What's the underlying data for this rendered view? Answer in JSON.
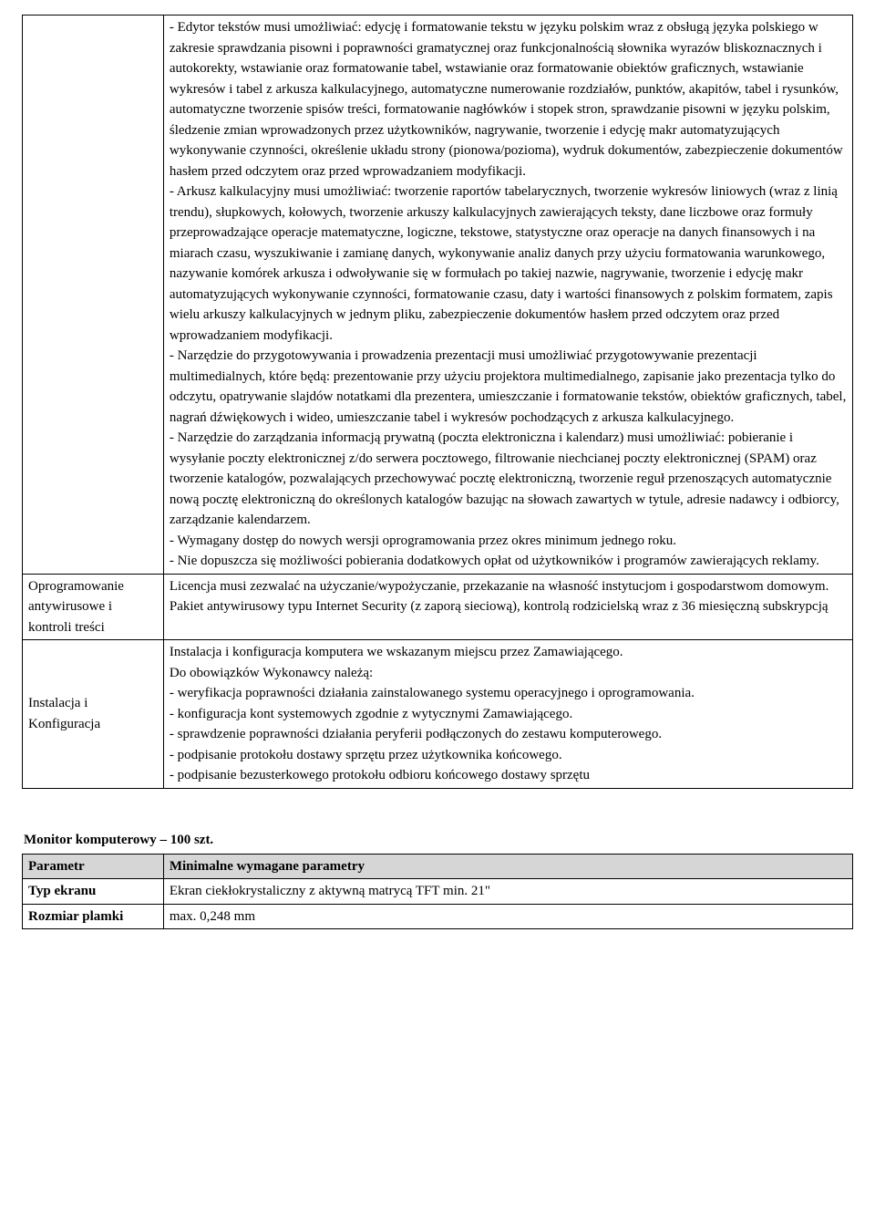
{
  "table1": {
    "rows": [
      {
        "label": "",
        "content": "- Edytor tekstów musi umożliwiać: edycję i formatowanie tekstu w języku polskim wraz z obsługą języka polskiego w zakresie sprawdzania pisowni i poprawności gramatycznej oraz funkcjonalnością słownika wyrazów  bliskoznacznych i autokorekty, wstawianie oraz formatowanie tabel, wstawianie oraz formatowanie obiektów graficznych, wstawianie wykresów i tabel z arkusza kalkulacyjnego,  automatyczne numerowanie rozdziałów, punktów, akapitów, tabel i rysunków, automatyczne tworzenie spisów treści, formatowanie nagłówków i stopek stron, sprawdzanie pisowni w języku polskim, śledzenie zmian wprowadzonych przez użytkowników, nagrywanie, tworzenie i edycję makr automatyzujących wykonywanie czynności, określenie układu strony (pionowa/pozioma), wydruk dokumentów, zabezpieczenie dokumentów hasłem przed odczytem oraz przed wprowadzaniem modyfikacji.\n- Arkusz kalkulacyjny musi umożliwiać: tworzenie raportów tabelarycznych, tworzenie wykresów liniowych (wraz z linią trendu), słupkowych, kołowych, tworzenie arkuszy kalkulacyjnych zawierających teksty, dane liczbowe oraz formuły przeprowadzające operacje matematyczne, logiczne, tekstowe, statystyczne oraz operacje na danych finansowych i na miarach czasu, wyszukiwanie i zamianę danych, wykonywanie analiz danych przy użyciu formatowania warunkowego, nazywanie komórek arkusza i odwoływanie się w formułach po takiej nazwie, nagrywanie, tworzenie i edycję makr automatyzujących wykonywanie czynności, formatowanie czasu, daty i wartości finansowych z polskim formatem, zapis wielu arkuszy kalkulacyjnych w jednym pliku, zabezpieczenie dokumentów hasłem przed odczytem oraz przed wprowadzaniem modyfikacji.\n- Narzędzie do przygotowywania i prowadzenia prezentacji musi umożliwiać przygotowywanie prezentacji multimedialnych, które będą: prezentowanie przy użyciu projektora multimedialnego, zapisanie jako prezentacja tylko do odczytu, opatrywanie slajdów notatkami dla prezentera, umieszczanie i formatowanie tekstów, obiektów graficznych, tabel, nagrań dźwiękowych i wideo, umieszczanie tabel i wykresów pochodzących z arkusza kalkulacyjnego.\n- Narzędzie do zarządzania informacją prywatną (poczta elektroniczna i kalendarz) musi umożliwiać: pobieranie i wysyłanie poczty elektronicznej z/do serwera pocztowego, filtrowanie niechcianej poczty elektronicznej (SPAM) oraz  tworzenie katalogów, pozwalających przechowywać pocztę elektroniczną, tworzenie reguł przenoszących automatycznie nową pocztę elektroniczną do określonych katalogów bazując na słowach zawartych w tytule, adresie nadawcy i odbiorcy, zarządzanie kalendarzem.\n- Wymagany dostęp do nowych wersji  oprogramowania przez okres minimum jednego roku.\n- Nie dopuszcza się możliwości pobierania dodatkowych opłat od użytkowników i programów zawierających reklamy."
      },
      {
        "label": "Oprogramowanie antywirusowe i kontroli treści",
        "content": "Licencja musi zezwalać na użyczanie/wypożyczanie, przekazanie na własność instytucjom i gospodarstwom domowym.\nPakiet antywirusowy typu Internet Security (z zaporą sieciową), kontrolą rodzicielską wraz z 36 miesięczną subskrypcją"
      },
      {
        "label": "Instalacja i Konfiguracja",
        "content": "Instalacja i konfiguracja  komputera we wskazanym miejscu przez Zamawiającego.\nDo obowiązków Wykonawcy należą:\n- weryfikacja poprawności działania zainstalowanego systemu operacyjnego i oprogramowania.\n- konfiguracja kont systemowych zgodnie z wytycznymi Zamawiającego.\n- sprawdzenie poprawności działania peryferii podłączonych do zestawu komputerowego.\n- podpisanie protokołu dostawy sprzętu przez użytkownika końcowego.\n- podpisanie bezusterkowego protokołu odbioru końcowego dostawy sprzętu"
      }
    ]
  },
  "section2": {
    "title": "Monitor komputerowy  –  100 szt.",
    "header": {
      "col1": "Parametr",
      "col2": "Minimalne wymagane parametry"
    },
    "rows": [
      {
        "label": "Typ ekranu",
        "content": "Ekran ciekłokrystaliczny z aktywną matrycą TFT min. 21\""
      },
      {
        "label": "Rozmiar plamki",
        "content": "max. 0,248 mm"
      }
    ]
  }
}
